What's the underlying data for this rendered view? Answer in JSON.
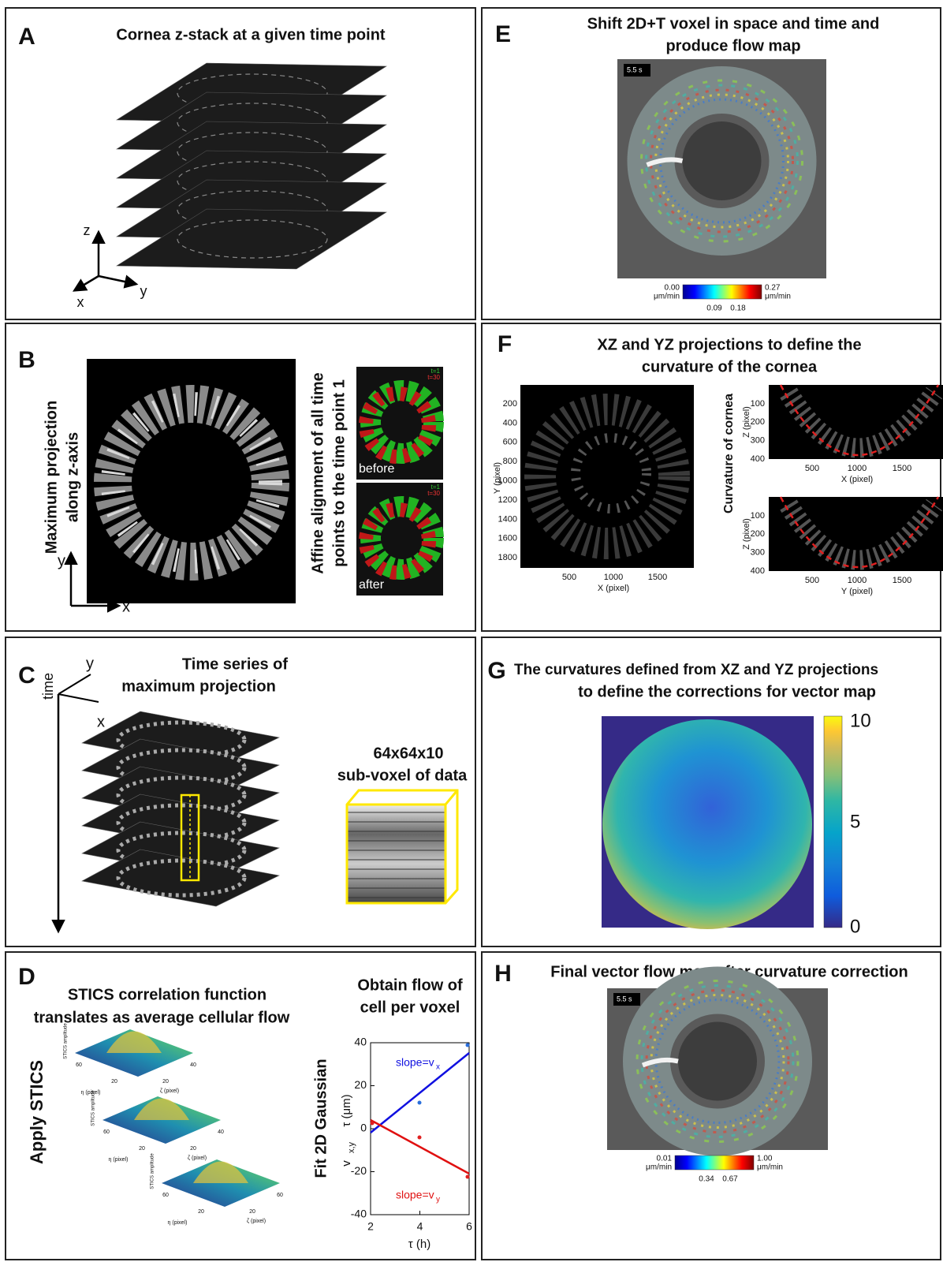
{
  "panels": {
    "a": {
      "letter": "A",
      "title": "Cornea z-stack at a given time point",
      "axes": [
        "z",
        "y",
        "x"
      ]
    },
    "b": {
      "letter": "B",
      "left_label": [
        "Maximum projection",
        "along  z-axis"
      ],
      "right_label": [
        "Affine alignment of all time",
        "points to the  time point 1"
      ],
      "before": "before",
      "after": "after",
      "frame_labels": [
        "t=1",
        "t=30",
        "t=1",
        "t=30"
      ],
      "axes": [
        "y",
        "x"
      ]
    },
    "c": {
      "letter": "C",
      "title": [
        "Time series of",
        "maximum projection"
      ],
      "axes": [
        "y",
        "x",
        "time"
      ],
      "inset": [
        "64x64x10",
        "sub-voxel of data"
      ]
    },
    "d": {
      "letter": "D",
      "title": [
        "STICS correlation function",
        "translates as average cellular flow"
      ],
      "side_label": "Apply STICS",
      "surfaces": [
        {
          "zlabel": "STICS amplitude",
          "xlabel": "η (pixel)",
          "ylabel": "ζ (pixel)",
          "ticks": [
            "60",
            "20",
            "20",
            "40"
          ]
        },
        {
          "zlabel": "STICS amplitude",
          "xlabel": "η (pixel)",
          "ylabel": "ζ (pixel)",
          "ticks": [
            "60",
            "20",
            "20",
            "40"
          ]
        },
        {
          "zlabel": "STICS amplitude",
          "xlabel": "η (pixel)",
          "ylabel": "ζ (pixel)",
          "ticks": [
            "60",
            "20",
            "20",
            "60"
          ]
        }
      ],
      "plot_title": [
        "Obtain flow of",
        "cell per voxel"
      ],
      "fit_label": "Fit 2D Gaussian",
      "yticks": [
        "40",
        "20",
        "0",
        "-20",
        "-40"
      ],
      "xticks": [
        "2",
        "4",
        "6"
      ],
      "ylabel": [
        "v",
        "x,y",
        "τ (μm)"
      ],
      "xlabel": "τ (h)",
      "slope_x": [
        "slope=v",
        "x"
      ],
      "slope_y": [
        "slope=v",
        "y"
      ]
    },
    "e": {
      "letter": "E",
      "title": [
        "Shift 2D+T voxel in space and time and",
        "produce flow map"
      ],
      "timestamp": "5.5   s",
      "colorbar": {
        "min": "0.00",
        "max": "0.27",
        "unit_min": "μm/min",
        "unit_max": "μm/min",
        "ticks": [
          "0.09",
          "0.18"
        ]
      }
    },
    "f": {
      "letter": "F",
      "title": [
        "XZ and YZ projections to define the",
        "curvature of the cornea"
      ],
      "xy": {
        "yticks": [
          "200",
          "400",
          "600",
          "800",
          "1000",
          "1200",
          "1400",
          "1600",
          "1800"
        ],
        "xticks": [
          "500",
          "1000",
          "1500"
        ],
        "ylabel": "Y (pixel)",
        "xlabel": "X (pixel)"
      },
      "side_label": "Curvature of cornea",
      "xz": {
        "yticks": [
          "100",
          "200",
          "300",
          "400"
        ],
        "xticks": [
          "500",
          "1000",
          "1500"
        ],
        "ylabel": "Z (pixel)",
        "xlabel": "X (pixel)"
      },
      "yz": {
        "yticks": [
          "100",
          "200",
          "300",
          "400"
        ],
        "xticks": [
          "500",
          "1000",
          "1500"
        ],
        "ylabel": "Z (pixel)",
        "xlabel": "Y (pixel)"
      }
    },
    "g": {
      "letter": "G",
      "title": [
        "The curvatures defined from XZ and YZ projections",
        "to define the corrections for vector map"
      ],
      "colorbar_ticks": [
        "10",
        "5",
        "0"
      ]
    },
    "h": {
      "letter": "H",
      "title": "Final vector flow map after curvature correction",
      "timestamp": "5.5   s",
      "colorbar": {
        "min": "0.01",
        "max": "1.00",
        "unit_min": "μm/min",
        "unit_max": "μm/min",
        "ticks": [
          "0.34",
          "0.67"
        ]
      }
    }
  }
}
